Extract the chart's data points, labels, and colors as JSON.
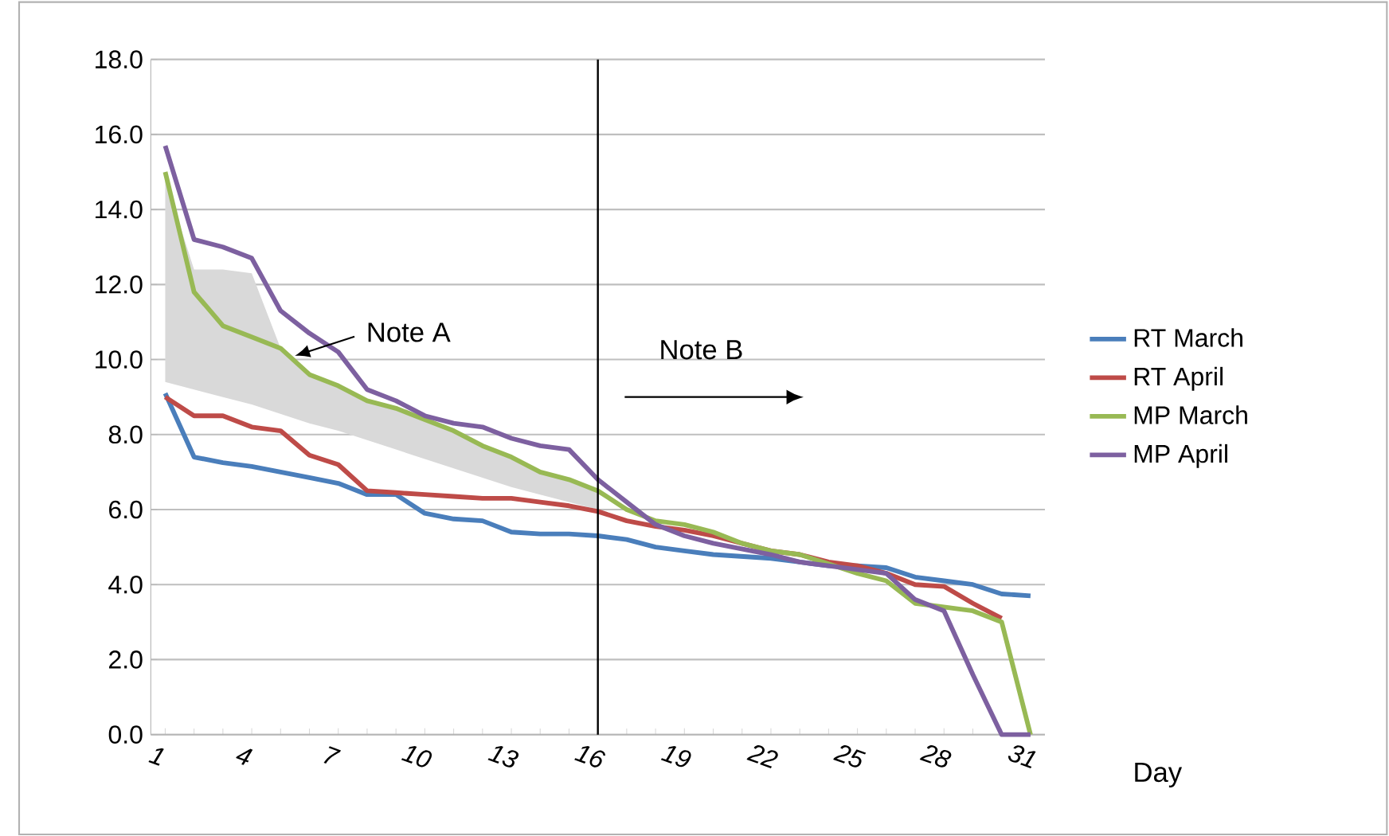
{
  "chart_data": {
    "type": "line",
    "xlabel": "Day",
    "x": [
      1,
      2,
      3,
      4,
      5,
      6,
      7,
      8,
      9,
      10,
      11,
      12,
      13,
      14,
      15,
      16,
      17,
      18,
      19,
      20,
      21,
      22,
      23,
      24,
      25,
      26,
      27,
      28,
      29,
      30,
      31
    ],
    "xlim": [
      0.5,
      31.5
    ],
    "xticks": [
      1,
      4,
      7,
      10,
      13,
      16,
      19,
      22,
      25,
      28,
      31
    ],
    "ylim": [
      0,
      18
    ],
    "yticks": [
      {
        "value": 0,
        "label": "0.0"
      },
      {
        "value": 2,
        "label": "2.0"
      },
      {
        "value": 4,
        "label": "4.0"
      },
      {
        "value": 6,
        "label": "6.0"
      },
      {
        "value": 8,
        "label": "8.0"
      },
      {
        "value": 10,
        "label": "10.0"
      },
      {
        "value": 12,
        "label": "12.0"
      },
      {
        "value": 14,
        "label": "14.0"
      },
      {
        "value": 16,
        "label": "16.0"
      },
      {
        "value": 18,
        "label": "18.0"
      }
    ],
    "grid": "y",
    "legend": "right",
    "marker": "none",
    "line_style": "solid",
    "series": [
      {
        "name": "RT March",
        "color": "#4a7ebb",
        "values": [
          9.1,
          7.4,
          7.25,
          7.15,
          7.0,
          6.85,
          6.7,
          6.4,
          6.4,
          5.9,
          5.75,
          5.7,
          5.4,
          5.35,
          5.35,
          5.3,
          5.2,
          5.0,
          4.9,
          4.8,
          4.75,
          4.7,
          4.6,
          4.5,
          4.5,
          4.45,
          4.2,
          4.1,
          4.0,
          3.75,
          3.7
        ]
      },
      {
        "name": "RT April",
        "color": "#be4b48",
        "values": [
          9.0,
          8.5,
          8.5,
          8.2,
          8.1,
          7.45,
          7.2,
          6.5,
          6.45,
          6.4,
          6.35,
          6.3,
          6.3,
          6.2,
          6.1,
          5.95,
          5.7,
          5.55,
          5.45,
          5.3,
          5.1,
          4.9,
          4.8,
          4.6,
          4.5,
          4.3,
          4.0,
          3.95,
          3.5,
          3.1,
          null
        ]
      },
      {
        "name": "MP March",
        "color": "#98b954",
        "values": [
          15.0,
          11.8,
          10.9,
          10.6,
          10.3,
          9.6,
          9.3,
          8.9,
          8.7,
          8.4,
          8.1,
          7.7,
          7.4,
          7.0,
          6.8,
          6.5,
          6.0,
          5.7,
          5.6,
          5.4,
          5.1,
          4.9,
          4.8,
          4.55,
          4.3,
          4.1,
          3.5,
          3.4,
          3.3,
          3.0,
          0
        ],
        "lower": [
          9.4,
          9.2,
          9.0,
          8.8,
          8.55,
          8.3,
          8.1,
          7.85,
          7.6,
          7.35,
          7.1,
          6.85,
          6.6,
          6.4,
          6.2,
          6.0,
          null,
          null,
          null,
          null,
          null,
          null,
          null,
          null,
          null,
          null,
          null,
          null,
          null,
          null,
          null
        ],
        "upper": [
          14.8,
          12.4,
          12.4,
          12.3,
          10.3,
          9.6,
          9.3,
          8.9,
          8.7,
          8.4,
          8.1,
          7.7,
          7.4,
          7.0,
          6.8,
          6.5,
          null,
          null,
          null,
          null,
          null,
          null,
          null,
          null,
          null,
          null,
          null,
          null,
          null,
          null,
          null
        ]
      },
      {
        "name": "MP April",
        "color": "#7d60a0",
        "values": [
          15.7,
          13.2,
          13.0,
          12.7,
          11.3,
          10.7,
          10.2,
          9.2,
          8.9,
          8.5,
          8.3,
          8.2,
          7.9,
          7.7,
          7.6,
          6.8,
          6.2,
          5.6,
          5.3,
          5.1,
          4.95,
          4.8,
          4.6,
          4.5,
          4.4,
          4.3,
          3.6,
          3.3,
          1.6,
          0,
          0
        ]
      }
    ],
    "ref_lines": [
      {
        "axis": "x",
        "value": 16,
        "color": "#000000"
      }
    ],
    "annotations": [
      {
        "text": "Note A",
        "x": 5.5,
        "y": 10.1
      },
      "Note B"
    ]
  }
}
